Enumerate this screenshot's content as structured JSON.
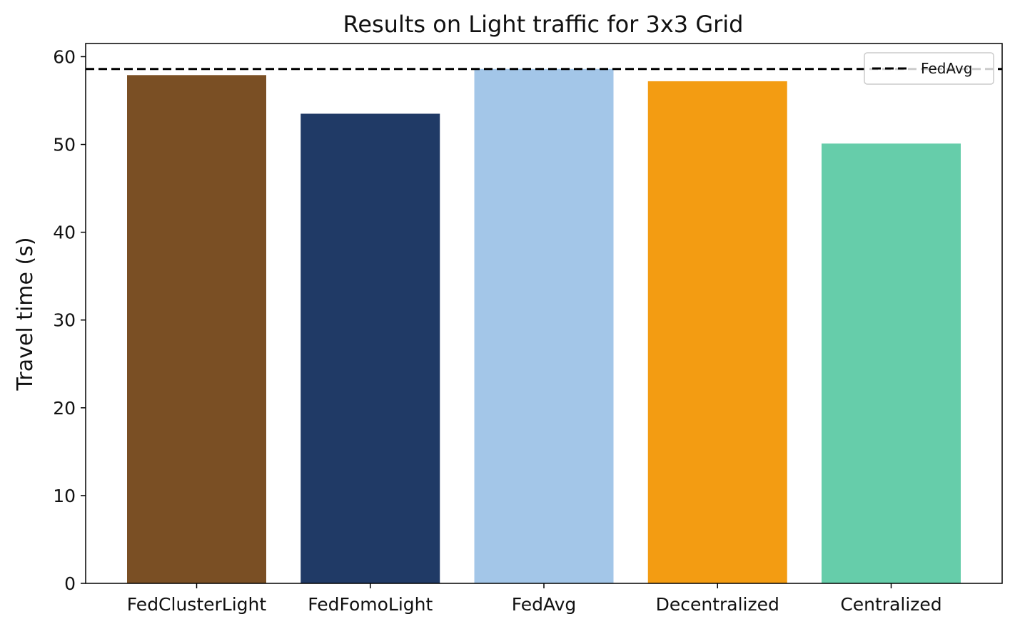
{
  "chart_data": {
    "type": "bar",
    "title": "Results on Light traffic for 3x3 Grid",
    "xlabel": "",
    "ylabel": "Travel time (s)",
    "categories": [
      "FedClusterLight",
      "FedFomoLight",
      "FedAvg",
      "Decentralized",
      "Centralized"
    ],
    "values": [
      57.9,
      53.5,
      58.6,
      57.2,
      50.1
    ],
    "colors": [
      "#7a4f24",
      "#203a66",
      "#a3c6e8",
      "#f39c12",
      "#66cdaa"
    ],
    "ylim": [
      0,
      61.5
    ],
    "yticks": [
      0,
      10,
      20,
      30,
      40,
      50,
      60
    ],
    "grid": false,
    "reference_line": {
      "label": "FedAvg",
      "value": 58.6,
      "style": "dashed",
      "color": "#000000"
    },
    "legend": {
      "placement": "top-right",
      "entries": [
        "FedAvg"
      ]
    }
  }
}
